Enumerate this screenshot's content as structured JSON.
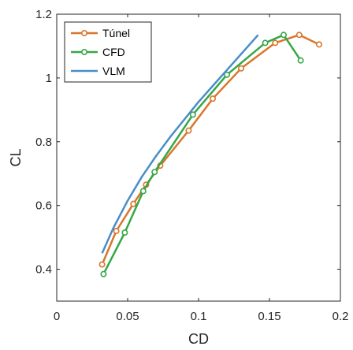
{
  "chart_data": {
    "type": "line",
    "xlabel": "CD",
    "ylabel": "CL",
    "xlim": [
      0,
      0.2
    ],
    "ylim": [
      0.3,
      1.2
    ],
    "x_ticks": [
      0,
      0.05,
      0.1,
      0.15,
      0.2
    ],
    "x_tick_labels": [
      "0",
      "0.05",
      "0.1",
      "0.15",
      "0.2"
    ],
    "y_ticks": [
      0.4,
      0.6,
      0.8,
      1.0,
      1.2
    ],
    "y_tick_labels": [
      "0.4",
      "0.6",
      "0.8",
      "1",
      "1.2"
    ],
    "grid": false,
    "legend_position": "top-left",
    "series": [
      {
        "name": "Túnel",
        "color": "#D9762B",
        "marker": "circle",
        "x": [
          0.032,
          0.042,
          0.054,
          0.063,
          0.073,
          0.093,
          0.11,
          0.13,
          0.154,
          0.171,
          0.185
        ],
        "y": [
          0.415,
          0.52,
          0.605,
          0.665,
          0.725,
          0.835,
          0.935,
          1.03,
          1.11,
          1.135,
          1.105
        ]
      },
      {
        "name": "CFD",
        "color": "#34A845",
        "marker": "circle",
        "x": [
          0.033,
          0.048,
          0.061,
          0.069,
          0.096,
          0.12,
          0.147,
          0.16,
          0.172
        ],
        "y": [
          0.385,
          0.515,
          0.645,
          0.705,
          0.885,
          1.01,
          1.11,
          1.135,
          1.055
        ]
      },
      {
        "name": "VLM",
        "color": "#4A8DC9",
        "marker": "none",
        "x": [
          0.032,
          0.04,
          0.05,
          0.06,
          0.07,
          0.08,
          0.09,
          0.1,
          0.11,
          0.12,
          0.13,
          0.142
        ],
        "y": [
          0.45,
          0.53,
          0.615,
          0.69,
          0.755,
          0.815,
          0.87,
          0.925,
          0.975,
          1.025,
          1.075,
          1.135
        ]
      }
    ]
  }
}
